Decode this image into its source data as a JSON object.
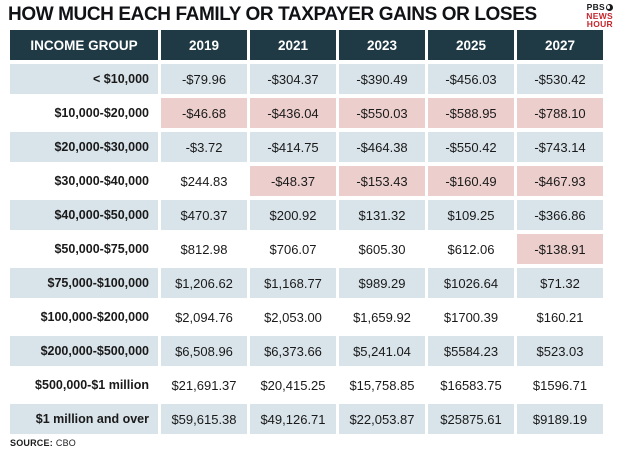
{
  "title": "HOW MUCH EACH FAMILY OR TAXPAYER GAINS OR LOSES",
  "logo": {
    "line1": "PBS",
    "line2": "NEWS",
    "line3": "HOUR"
  },
  "source": {
    "label": "SOURCE:",
    "value": "CBO"
  },
  "colors": {
    "header_bg": "#203a45",
    "header_text": "#ffffff",
    "row_alt_bg": "#d8e3ea",
    "negative_bg": "#eccfcc",
    "logo_red": "#c4262c",
    "text": "#1a1a1a"
  },
  "chart_data": {
    "type": "table",
    "title": "HOW MUCH EACH FAMILY OR TAXPAYER GAINS OR LOSES",
    "columns": [
      "INCOME GROUP",
      "2019",
      "2021",
      "2023",
      "2025",
      "2027"
    ],
    "rows": [
      {
        "group": "< $10,000",
        "values": [
          "-$79.96",
          "-$304.37",
          "-$390.49",
          "-$456.03",
          "-$530.42"
        ]
      },
      {
        "group": "$10,000-$20,000",
        "values": [
          "-$46.68",
          "-$436.04",
          "-$550.03",
          "-$588.95",
          "-$788.10"
        ]
      },
      {
        "group": "$20,000-$30,000",
        "values": [
          "-$3.72",
          "-$414.75",
          "-$464.38",
          "-$550.42",
          "-$743.14"
        ]
      },
      {
        "group": "$30,000-$40,000",
        "values": [
          "$244.83",
          "-$48.37",
          "-$153.43",
          "-$160.49",
          "-$467.93"
        ]
      },
      {
        "group": "$40,000-$50,000",
        "values": [
          "$470.37",
          "$200.92",
          "$131.32",
          "$109.25",
          "-$366.86"
        ]
      },
      {
        "group": "$50,000-$75,000",
        "values": [
          "$812.98",
          "$706.07",
          "$605.30",
          "$612.06",
          "-$138.91"
        ]
      },
      {
        "group": "$75,000-$100,000",
        "values": [
          "$1,206.62",
          "$1,168.77",
          "$989.29",
          "$1026.64",
          "$71.32"
        ]
      },
      {
        "group": "$100,000-$200,000",
        "values": [
          "$2,094.76",
          "$2,053.00",
          "$1,659.92",
          "$1700.39",
          "$160.21"
        ]
      },
      {
        "group": "$200,000-$500,000",
        "values": [
          "$6,508.96",
          "$6,373.66",
          "$5,241.04",
          "$5584.23",
          "$523.03"
        ]
      },
      {
        "group": "$500,000-$1 million",
        "values": [
          "$21,691.37",
          "$20,415.25",
          "$15,758.85",
          "$16583.75",
          "$1596.71"
        ]
      },
      {
        "group": "$1 million and over",
        "values": [
          "$59,615.38",
          "$49,126.71",
          "$22,053.87",
          "$25875.61",
          "$9189.19"
        ]
      }
    ]
  }
}
